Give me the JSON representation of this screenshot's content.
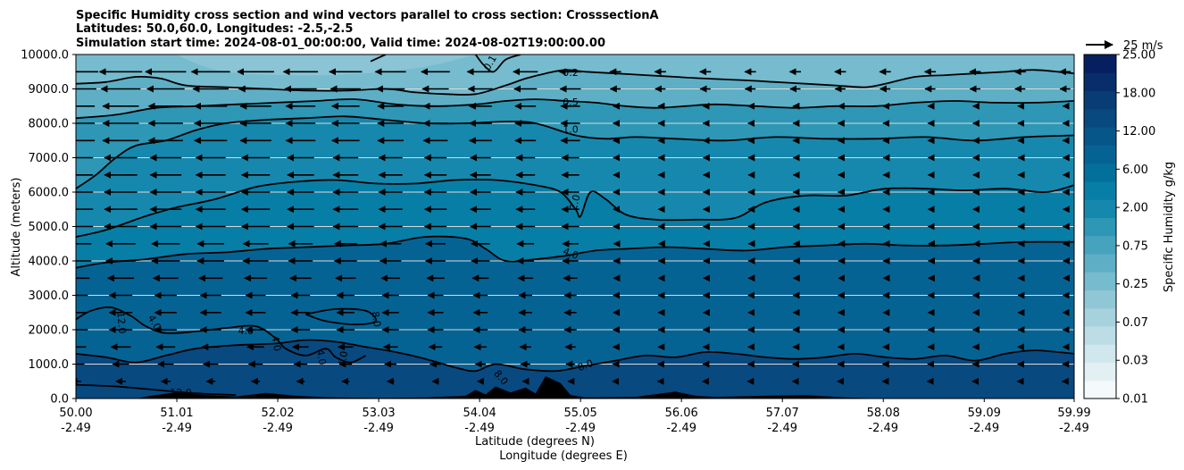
{
  "chart_data": {
    "type": "contour-cross-section",
    "title_lines": [
      "Specific Humidity cross section and wind vectors parallel to cross section: CrosssectionA",
      "Latitudes: 50.0,60.0, Longitudes: -2.5,-2.5",
      "Simulation start time: 2024-08-01_00:00:00, Valid time: 2024-08-02T19:00:00.00"
    ],
    "ylabel": "Altitude (meters)",
    "xlabel_lat": "Latitude (degrees N)",
    "xlabel_lon": "Longitude (degrees E)",
    "ylim": [
      0,
      10000
    ],
    "yticks": [
      "0.0",
      "1000.0",
      "2000.0",
      "3000.0",
      "4000.0",
      "5000.0",
      "6000.0",
      "7000.0",
      "8000.0",
      "9000.0",
      "10000.0"
    ],
    "xticks_lat": [
      "50.00",
      "51.01",
      "52.02",
      "53.03",
      "54.04",
      "55.05",
      "56.06",
      "57.07",
      "58.08",
      "59.09",
      "59.99"
    ],
    "xticks_lon": [
      "-2.49",
      "-2.49",
      "-2.49",
      "-2.49",
      "-2.49",
      "-2.49",
      "-2.49",
      "-2.49",
      "-2.49",
      "-2.49",
      "-2.49"
    ],
    "colorbar": {
      "label": "Specific Humidity g/kg",
      "ticks": [
        "0.01",
        "0.03",
        "0.07",
        "0.25",
        "0.75",
        "2.00",
        "6.00",
        "12.00",
        "18.00",
        "25.00"
      ],
      "levels": [
        0.01,
        0.02,
        0.03,
        0.05,
        0.07,
        0.1,
        0.25,
        0.5,
        0.75,
        1.0,
        2.0,
        4.0,
        6.0,
        8.0,
        12.0,
        15.0,
        18.0,
        22.0,
        25.0
      ],
      "colors": [
        "#f4fafb",
        "#e2f0f3",
        "#d0e7ed",
        "#bcdde6",
        "#a6d2de",
        "#90c7d7",
        "#76bbce",
        "#5eafc5",
        "#46a3bd",
        "#2d97b5",
        "#1688ad",
        "#077ea6",
        "#03709c",
        "#056394",
        "#07568a",
        "#084980",
        "#083c75",
        "#072e6a",
        "#06205f"
      ]
    },
    "wind_key": {
      "label": "25 m/s",
      "speed": 25
    },
    "contour_labels": [
      {
        "text": "0.1",
        "lat": 54.15,
        "alt": 9750,
        "rot": -60
      },
      {
        "text": "0.2",
        "lat": 54.95,
        "alt": 9450,
        "rot": 0
      },
      {
        "text": "0.5",
        "lat": 54.95,
        "alt": 8600,
        "rot": 0
      },
      {
        "text": "1.0",
        "lat": 54.95,
        "alt": 7800,
        "rot": 0
      },
      {
        "text": "2.0",
        "lat": 55.0,
        "alt": 5700,
        "rot": -75
      },
      {
        "text": "4.0",
        "lat": 54.95,
        "alt": 4200,
        "rot": 20
      },
      {
        "text": "8.0",
        "lat": 53.0,
        "alt": 2300,
        "rot": 80
      },
      {
        "text": "8.0",
        "lat": 55.1,
        "alt": 950,
        "rot": -20
      },
      {
        "text": "8.0",
        "lat": 54.25,
        "alt": 600,
        "rot": 50
      },
      {
        "text": "12.0",
        "lat": 50.45,
        "alt": 2200,
        "rot": 85
      },
      {
        "text": "4.0",
        "lat": 50.78,
        "alt": 2200,
        "rot": 60
      },
      {
        "text": "4.0",
        "lat": 51.7,
        "alt": 1950,
        "rot": 0
      },
      {
        "text": "4.0",
        "lat": 52.0,
        "alt": 1600,
        "rot": 80
      },
      {
        "text": "4.0",
        "lat": 52.45,
        "alt": 1200,
        "rot": 80
      },
      {
        "text": "4.0",
        "lat": 52.68,
        "alt": 1150,
        "rot": -80
      },
      {
        "text": "12.0",
        "lat": 51.05,
        "alt": 150,
        "rot": 0
      }
    ],
    "contours": [
      {
        "level": 0.1,
        "points": [
          [
            52.95,
            9800
          ],
          [
            53.1,
            10000
          ]
        ]
      },
      {
        "level": 0.1,
        "points": [
          [
            54.0,
            10000
          ],
          [
            54.08,
            9700
          ],
          [
            54.18,
            9500
          ],
          [
            54.3,
            9850
          ],
          [
            54.45,
            10000
          ]
        ]
      },
      {
        "level": 0.2,
        "points": [
          [
            50.0,
            9150
          ],
          [
            50.3,
            9200
          ],
          [
            50.6,
            9350
          ],
          [
            50.85,
            9300
          ],
          [
            51.1,
            9100
          ],
          [
            51.5,
            9050
          ],
          [
            51.9,
            9000
          ],
          [
            52.3,
            8950
          ],
          [
            52.7,
            8950
          ],
          [
            53.1,
            9000
          ],
          [
            53.4,
            8900
          ],
          [
            53.7,
            8850
          ],
          [
            54.0,
            8850
          ],
          [
            54.3,
            9100
          ],
          [
            54.5,
            9300
          ],
          [
            54.7,
            9450
          ],
          [
            54.9,
            9550
          ],
          [
            55.1,
            9500
          ],
          [
            55.4,
            9450
          ],
          [
            55.7,
            9400
          ],
          [
            56.0,
            9350
          ],
          [
            56.3,
            9300
          ],
          [
            56.7,
            9250
          ],
          [
            57.0,
            9200
          ],
          [
            57.3,
            9150
          ],
          [
            57.6,
            9100
          ],
          [
            57.9,
            9050
          ],
          [
            58.1,
            9150
          ],
          [
            58.4,
            9350
          ],
          [
            58.7,
            9400
          ],
          [
            59.0,
            9450
          ],
          [
            59.3,
            9500
          ],
          [
            59.6,
            9550
          ],
          [
            59.99,
            9450
          ]
        ]
      },
      {
        "level": 0.5,
        "points": [
          [
            50.0,
            8150
          ],
          [
            50.4,
            8250
          ],
          [
            50.8,
            8450
          ],
          [
            51.2,
            8500
          ],
          [
            51.6,
            8550
          ],
          [
            52.0,
            8600
          ],
          [
            52.4,
            8650
          ],
          [
            52.8,
            8700
          ],
          [
            53.2,
            8550
          ],
          [
            53.6,
            8500
          ],
          [
            54.0,
            8550
          ],
          [
            54.3,
            8650
          ],
          [
            54.6,
            8700
          ],
          [
            54.9,
            8650
          ],
          [
            55.2,
            8600
          ],
          [
            55.5,
            8500
          ],
          [
            55.8,
            8450
          ],
          [
            56.1,
            8500
          ],
          [
            56.4,
            8550
          ],
          [
            56.8,
            8500
          ],
          [
            57.2,
            8450
          ],
          [
            57.6,
            8500
          ],
          [
            58.0,
            8500
          ],
          [
            58.4,
            8600
          ],
          [
            58.8,
            8650
          ],
          [
            59.2,
            8600
          ],
          [
            59.6,
            8600
          ],
          [
            59.99,
            8650
          ]
        ]
      },
      {
        "level": 1.0,
        "points": [
          [
            50.0,
            6100
          ],
          [
            50.2,
            6500
          ],
          [
            50.4,
            7000
          ],
          [
            50.6,
            7350
          ],
          [
            50.9,
            7500
          ],
          [
            51.2,
            7800
          ],
          [
            51.5,
            8000
          ],
          [
            51.9,
            8100
          ],
          [
            52.3,
            8150
          ],
          [
            52.7,
            8200
          ],
          [
            53.1,
            8100
          ],
          [
            53.5,
            8000
          ],
          [
            53.9,
            8000
          ],
          [
            54.3,
            8050
          ],
          [
            54.6,
            8000
          ],
          [
            55.0,
            7650
          ],
          [
            55.3,
            7550
          ],
          [
            55.6,
            7600
          ],
          [
            56.0,
            7550
          ],
          [
            56.5,
            7500
          ],
          [
            57.0,
            7600
          ],
          [
            57.5,
            7550
          ],
          [
            58.0,
            7550
          ],
          [
            58.5,
            7600
          ],
          [
            59.0,
            7500
          ],
          [
            59.5,
            7600
          ],
          [
            59.99,
            7650
          ]
        ]
      },
      {
        "level": 2.0,
        "points": [
          [
            50.0,
            4700
          ],
          [
            50.3,
            4900
          ],
          [
            50.7,
            5300
          ],
          [
            51.0,
            5550
          ],
          [
            51.4,
            5800
          ],
          [
            51.8,
            6150
          ],
          [
            52.2,
            6300
          ],
          [
            52.6,
            6350
          ],
          [
            53.0,
            6250
          ],
          [
            53.4,
            6250
          ],
          [
            53.8,
            6350
          ],
          [
            54.2,
            6350
          ],
          [
            54.6,
            6200
          ],
          [
            54.85,
            6000
          ],
          [
            55.0,
            5500
          ],
          [
            55.05,
            5300
          ],
          [
            55.15,
            6000
          ],
          [
            55.3,
            5800
          ],
          [
            55.5,
            5350
          ],
          [
            55.8,
            5200
          ],
          [
            56.2,
            5200
          ],
          [
            56.6,
            5250
          ],
          [
            56.9,
            5700
          ],
          [
            57.3,
            5900
          ],
          [
            57.7,
            5900
          ],
          [
            58.1,
            6100
          ],
          [
            58.5,
            6100
          ],
          [
            58.9,
            6050
          ],
          [
            59.3,
            6100
          ],
          [
            59.7,
            6000
          ],
          [
            59.99,
            6200
          ]
        ]
      },
      {
        "level": 4.0,
        "points": [
          [
            50.0,
            3800
          ],
          [
            50.3,
            3950
          ],
          [
            50.7,
            4050
          ],
          [
            51.1,
            4200
          ],
          [
            51.5,
            4250
          ],
          [
            51.9,
            4350
          ],
          [
            52.3,
            4400
          ],
          [
            52.7,
            4450
          ],
          [
            53.1,
            4500
          ],
          [
            53.5,
            4700
          ],
          [
            53.9,
            4650
          ],
          [
            54.1,
            4350
          ],
          [
            54.3,
            4000
          ],
          [
            54.6,
            4050
          ],
          [
            54.9,
            4150
          ],
          [
            55.2,
            4300
          ],
          [
            55.5,
            4350
          ],
          [
            55.9,
            4400
          ],
          [
            56.3,
            4350
          ],
          [
            56.7,
            4300
          ],
          [
            57.1,
            4400
          ],
          [
            57.5,
            4450
          ],
          [
            57.9,
            4500
          ],
          [
            58.3,
            4450
          ],
          [
            58.7,
            4450
          ],
          [
            59.1,
            4500
          ],
          [
            59.5,
            4550
          ],
          [
            59.99,
            4550
          ]
        ]
      },
      {
        "level": 8.0,
        "points": [
          [
            50.0,
            1300
          ],
          [
            50.3,
            1200
          ],
          [
            50.6,
            1050
          ],
          [
            50.9,
            1250
          ],
          [
            51.2,
            1450
          ],
          [
            51.6,
            1550
          ],
          [
            52.0,
            1600
          ],
          [
            52.3,
            1700
          ],
          [
            52.6,
            1650
          ],
          [
            52.9,
            1500
          ],
          [
            53.2,
            1350
          ],
          [
            53.5,
            1150
          ],
          [
            53.8,
            900
          ],
          [
            54.0,
            800
          ],
          [
            54.2,
            1000
          ],
          [
            54.5,
            850
          ],
          [
            54.8,
            800
          ],
          [
            55.1,
            950
          ],
          [
            55.4,
            1100
          ],
          [
            55.7,
            1250
          ],
          [
            56.0,
            1200
          ],
          [
            56.3,
            1350
          ],
          [
            56.6,
            1300
          ],
          [
            56.9,
            1200
          ],
          [
            57.2,
            1150
          ],
          [
            57.5,
            1200
          ],
          [
            57.8,
            1300
          ],
          [
            58.1,
            1200
          ],
          [
            58.4,
            1150
          ],
          [
            58.7,
            1250
          ],
          [
            59.0,
            1100
          ],
          [
            59.3,
            1300
          ],
          [
            59.6,
            1400
          ],
          [
            59.99,
            1300
          ]
        ]
      },
      {
        "level": 4.0,
        "points": [
          [
            50.0,
            2300
          ],
          [
            50.15,
            2550
          ],
          [
            50.35,
            2650
          ],
          [
            50.55,
            2400
          ],
          [
            50.7,
            2100
          ],
          [
            50.9,
            1900
          ],
          [
            51.2,
            1950
          ],
          [
            51.5,
            2050
          ],
          [
            51.8,
            2100
          ],
          [
            52.0,
            1750
          ],
          [
            52.1,
            1450
          ],
          [
            52.3,
            1250
          ],
          [
            52.5,
            1450
          ],
          [
            52.6,
            1200
          ],
          [
            52.75,
            1050
          ],
          [
            52.9,
            1250
          ]
        ]
      },
      {
        "level": 8.0,
        "points": [
          [
            52.3,
            2450
          ],
          [
            52.6,
            2600
          ],
          [
            52.9,
            2550
          ],
          [
            53.0,
            2250
          ],
          [
            52.8,
            2150
          ],
          [
            52.5,
            2250
          ],
          [
            52.3,
            2450
          ]
        ]
      },
      {
        "level": 12.0,
        "points": [
          [
            50.0,
            400
          ],
          [
            50.4,
            350
          ],
          [
            50.8,
            250
          ],
          [
            51.2,
            150
          ],
          [
            51.6,
            100
          ]
        ]
      }
    ],
    "terrain": [
      [
        50.0,
        0
      ],
      [
        50.6,
        0
      ],
      [
        50.75,
        80
      ],
      [
        51.0,
        180
      ],
      [
        51.3,
        100
      ],
      [
        51.6,
        60
      ],
      [
        51.9,
        160
      ],
      [
        52.2,
        80
      ],
      [
        52.5,
        40
      ],
      [
        53.0,
        20
      ],
      [
        53.5,
        30
      ],
      [
        53.9,
        80
      ],
      [
        54.0,
        250
      ],
      [
        54.1,
        120
      ],
      [
        54.2,
        350
      ],
      [
        54.35,
        180
      ],
      [
        54.5,
        320
      ],
      [
        54.6,
        150
      ],
      [
        54.7,
        650
      ],
      [
        54.85,
        450
      ],
      [
        54.95,
        100
      ],
      [
        55.1,
        30
      ],
      [
        55.6,
        50
      ],
      [
        56.0,
        200
      ],
      [
        56.2,
        80
      ],
      [
        56.4,
        50
      ],
      [
        56.9,
        80
      ],
      [
        57.3,
        100
      ],
      [
        57.7,
        30
      ],
      [
        58.1,
        0
      ],
      [
        59.99,
        0
      ]
    ],
    "wind": {
      "rows": [
        500,
        1000,
        1500,
        2000,
        2500,
        3000,
        3500,
        4000,
        4500,
        5000,
        5500,
        6000,
        6500,
        7000,
        7500,
        8000,
        8500,
        9000,
        9500
      ],
      "cols": [
        50.0,
        50.45,
        50.9,
        51.35,
        51.8,
        52.25,
        52.7,
        53.15,
        53.6,
        54.05,
        54.5,
        54.95,
        55.4,
        55.85,
        56.3,
        56.75,
        57.2,
        57.65,
        58.1,
        58.55,
        59.0,
        59.45,
        59.9
      ],
      "u_profile": [
        -3,
        -5,
        -6,
        -7,
        -7,
        -7,
        -8,
        -9,
        -9,
        -10,
        -10,
        -10,
        -10,
        -10,
        -11,
        -11,
        -11,
        -12,
        -13
      ],
      "north_factor": 0.2
    }
  }
}
